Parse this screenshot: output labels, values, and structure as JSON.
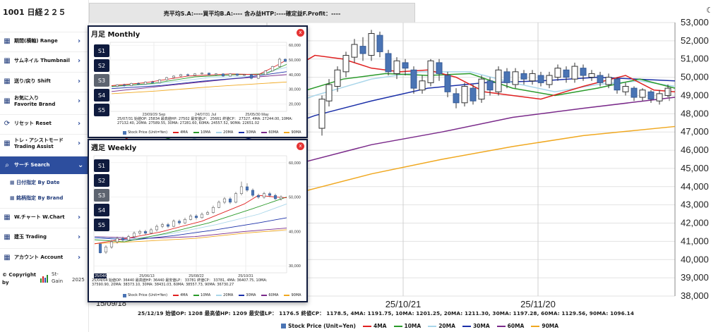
{
  "app": {
    "title": "1001 日経２２５",
    "infobar": "売平均S.A:----買平均B.A:---- 含み益HTP:----確定益F.Profit：----",
    "theme_icon": "moon-icon"
  },
  "sidebar": {
    "items": [
      {
        "icon": "calendar-icon",
        "label": "期間(横軸) Range"
      },
      {
        "icon": "calendar-icon",
        "label": "サムネイル Thumbnail"
      },
      {
        "icon": "calendar-icon",
        "label": "送り/戻り Shift"
      },
      {
        "icon": "calendar-icon",
        "label": "お気に入り\nFavorite    Brand"
      },
      {
        "icon": "refresh-icon",
        "label": "リセット Reset"
      },
      {
        "icon": "calendar-icon",
        "label": "トレ・アシストモード\nTrading Assist"
      },
      {
        "icon": "search-icon",
        "label": "サーチ Search"
      },
      {
        "icon": "calendar-icon",
        "label": "W.チャート W.Chart"
      },
      {
        "icon": "calendar-icon",
        "label": "建玉 Trading"
      },
      {
        "icon": "calendar-icon",
        "label": "アカウント Account"
      }
    ],
    "subitems": [
      "日付指定 By Date",
      "銘柄指定 By Brand"
    ],
    "copyright": "© Copyright\nby",
    "brand": "St-\nGain",
    "year": "2025"
  },
  "main_chart": {
    "y_ticks": [
      "53,000",
      "52,000",
      "51,000",
      "50,000",
      "49,000",
      "48,000",
      "47,000",
      "46,000",
      "45,000",
      "44,000",
      "43,000",
      "42,000",
      "41,000",
      "40,000",
      "39,000",
      "38,000"
    ],
    "x_ticks": [
      "25/10/21",
      "25/11/20"
    ],
    "x_tick_partial": "15/09/18",
    "info": "25/12/19 始値OP: 1208  最高値HP: 1209 最安値LP： 1176.5  終値CP： 1178.5, 4MA: 1191.75, 10MA: 1201.25, 20MA: 1211.30, 30MA: 1197.28, 60MA: 1129.56, 90MA: 1096.14",
    "legend": [
      {
        "label": "Stock Price (Unit=Yen)",
        "color": "#4a74b4",
        "kind": "box"
      },
      {
        "label": "4MA",
        "color": "#e02020",
        "kind": "line"
      },
      {
        "label": "10MA",
        "color": "#2a9a2a",
        "kind": "line"
      },
      {
        "label": "20MA",
        "color": "#a9d6ea",
        "kind": "line"
      },
      {
        "label": "30MA",
        "color": "#1a2fa8",
        "kind": "line"
      },
      {
        "label": "60MA",
        "color": "#7a2a8a",
        "kind": "line"
      },
      {
        "label": "90MA",
        "color": "#f0a820",
        "kind": "line"
      }
    ]
  },
  "monthly": {
    "title": "月足 Monthly",
    "close": "x",
    "buttons": [
      "S1",
      "S2",
      "S3",
      "S4",
      "S5"
    ],
    "selected": "S3",
    "y_ticks": [
      "60,000",
      "50,000",
      "40,000",
      "30,000",
      "20,000"
    ],
    "x_ticks": [
      "23/09/29 Sep",
      "24/07/31 Jul",
      "25/05/30 May"
    ],
    "info": "25/07/31 始値OP: 25834  最高値HP: 27502 最安値LP： 25661  終値CP： 27327, 4MA: 27244.00, 10MA:\n27132.40, 20MA: 27589.55, 30MA: 27281.60, 60MA: 24557.52, 90MA: 22651.02",
    "legend": [
      "Stock Price (Unit=Yen)",
      "4MA",
      "10MA",
      "20MA",
      "30MA",
      "60MA",
      "90MA"
    ]
  },
  "weekly": {
    "title": "週足 Weekly",
    "close": "x",
    "buttons": [
      "S1",
      "S2",
      "S3",
      "S4",
      "S5"
    ],
    "selected": "S3",
    "y_ticks": [
      "60,000",
      "50,000",
      "40,000",
      "30,000"
    ],
    "x_ticks": [
      "25/06/13",
      "25/08/22",
      "25/10/31"
    ],
    "x_tick_partial": "25/04/04",
    "info": "25/04/04 始値OP: 36440  最高値HP: 36440 最安値LP： 33781  終値CP： 33781, 4MA: 36407.75, 10MA:\n37590.90, 20MA: 38373.10, 30MA: 38431.03, 60MA: 38557.73, 90MA: 36730.27",
    "legend": [
      "Stock Price (Unit=Yen)",
      "4MA",
      "10MA",
      "20MA",
      "30MA",
      "60MA",
      "90MA"
    ]
  }
}
